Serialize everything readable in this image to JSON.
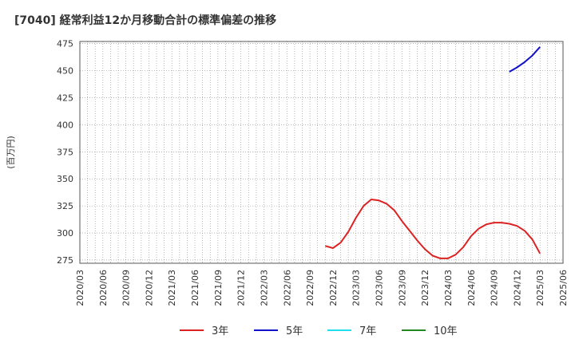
{
  "title": "[7040]  経常利益12か月移動合計の標準偏差の推移",
  "chart_data": {
    "type": "line",
    "title": "[7040]  経常利益12か月移動合計の標準偏差の推移",
    "ylabel": "(百万円)",
    "xlabel": "",
    "ylim": [
      272,
      477
    ],
    "yticks": [
      275,
      300,
      325,
      350,
      375,
      400,
      425,
      450,
      475
    ],
    "grid": true,
    "legend_position": "bottom",
    "x_ticks": [
      "2020/03",
      "2020/06",
      "2020/09",
      "2020/12",
      "2021/03",
      "2021/06",
      "2021/09",
      "2021/12",
      "2022/03",
      "2022/06",
      "2022/09",
      "2022/12",
      "2023/03",
      "2023/06",
      "2023/09",
      "2023/12",
      "2024/03",
      "2024/06",
      "2024/09",
      "2024/12",
      "2025/03",
      "2025/06"
    ],
    "series": [
      {
        "name": "3年",
        "color": "#dd2222",
        "points": [
          [
            "2022/11",
            288
          ],
          [
            "2022/12",
            286
          ],
          [
            "2023/01",
            291
          ],
          [
            "2023/02",
            301
          ],
          [
            "2023/03",
            314
          ],
          [
            "2023/04",
            325
          ],
          [
            "2023/05",
            331
          ],
          [
            "2023/06",
            330
          ],
          [
            "2023/07",
            327
          ],
          [
            "2023/08",
            321
          ],
          [
            "2023/09",
            311
          ],
          [
            "2023/10",
            302
          ],
          [
            "2023/11",
            293
          ],
          [
            "2023/12",
            285
          ],
          [
            "2024/01",
            279
          ],
          [
            "2024/02",
            276.5
          ],
          [
            "2024/03",
            276.5
          ],
          [
            "2024/04",
            280
          ],
          [
            "2024/05",
            287
          ],
          [
            "2024/06",
            297
          ],
          [
            "2024/07",
            304
          ],
          [
            "2024/08",
            308
          ],
          [
            "2024/09",
            309.5
          ],
          [
            "2024/10",
            309.5
          ],
          [
            "2024/11",
            308.5
          ],
          [
            "2024/12",
            306.5
          ],
          [
            "2025/01",
            302
          ],
          [
            "2025/02",
            294
          ],
          [
            "2025/03",
            281
          ]
        ]
      },
      {
        "name": "5年",
        "color": "#1111cc",
        "points": [
          [
            "2024/11",
            449
          ],
          [
            "2024/12",
            453
          ],
          [
            "2025/01",
            458
          ],
          [
            "2025/02",
            464
          ],
          [
            "2025/03",
            472
          ]
        ]
      },
      {
        "name": "7年",
        "color": "#22ddee",
        "points": []
      },
      {
        "name": "10年",
        "color": "#228822",
        "points": []
      }
    ]
  }
}
